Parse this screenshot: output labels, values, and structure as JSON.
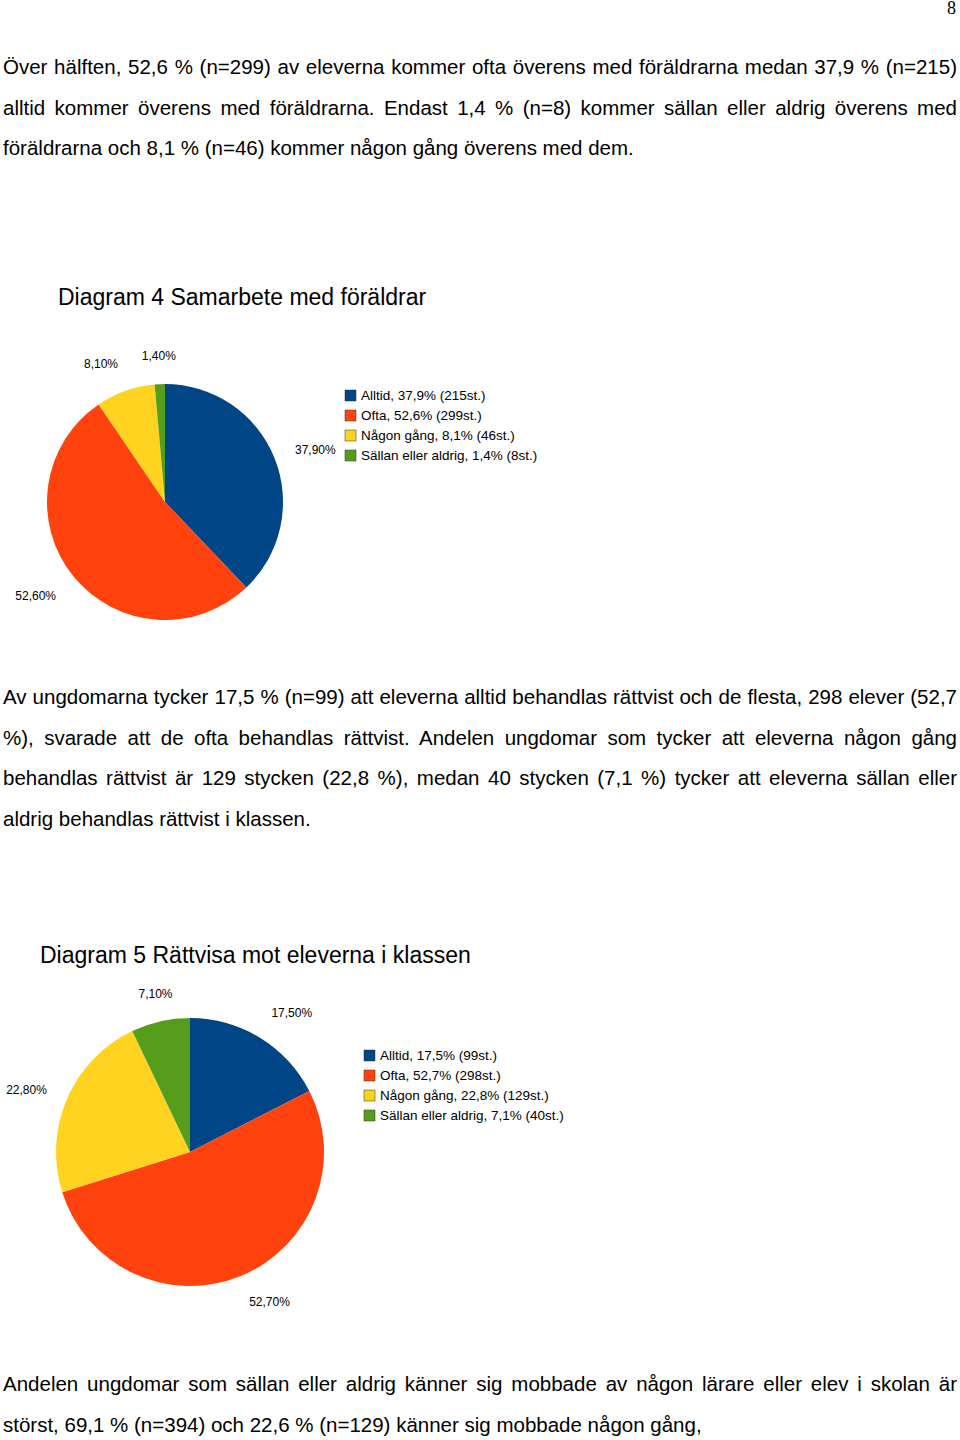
{
  "page_number": 8,
  "paragraphs": [
    "Över hälften, 52,6 % (n=299) av eleverna kommer ofta överens med föräldrarna medan 37,9 % (n=215) alltid kommer överens med föräldrarna. Endast 1,4 % (n=8) kommer sällan eller aldrig överens med föräldrarna och 8,1 % (n=46) kommer någon gång överens med dem.",
    "Av ungdomarna tycker 17,5 % (n=99) att eleverna alltid behandlas rättvist och de flesta, 298 elever (52,7 %), svarade att de ofta behandlas rättvist. Andelen ungdomar som tycker att eleverna någon gång behandlas rättvist är 129 stycken (22,8 %), medan 40 stycken (7,1 %) tycker att eleverna sällan eller aldrig behandlas rättvist i klassen.",
    "Andelen ungdomar som sällan eller aldrig känner sig mobbade av någon lärare eller elev i skolan är störst, 69,1 % (n=394) och 22,6 % (n=129) känner sig mobbade någon gång,"
  ],
  "chart_data": [
    {
      "type": "pie",
      "title": "Diagram 4 Samarbete med föräldrar",
      "categories": [
        "Alltid, 37,9% (215st.)",
        "Ofta, 52,6% (299st.)",
        "Någon gång, 8,1% (46st.)",
        "Sällan eller aldrig, 1,4% (8st.)"
      ],
      "values": [
        37.9,
        52.6,
        8.1,
        1.4
      ],
      "value_labels": [
        "37,90%",
        "52,60%",
        "8,10%",
        "1,40%"
      ],
      "colors": [
        "#004586",
        "#ff420e",
        "#ffd320",
        "#579d1c"
      ],
      "data_labels": true,
      "legend": "right"
    },
    {
      "type": "pie",
      "title": "Diagram 5 Rättvisa mot eleverna i klassen",
      "categories": [
        "Alltid, 17,5% (99st.)",
        "Ofta, 52,7% (298st.)",
        "Någon gång, 22,8% (129st.)",
        "Sällan eller aldrig, 7,1% (40st.)"
      ],
      "values": [
        17.5,
        52.7,
        22.8,
        7.1
      ],
      "value_labels": [
        "17,50%",
        "52,70%",
        "22,80%",
        "7,10%"
      ],
      "colors": [
        "#004586",
        "#ff420e",
        "#ffd320",
        "#579d1c"
      ],
      "data_labels": true,
      "legend": "right"
    }
  ]
}
